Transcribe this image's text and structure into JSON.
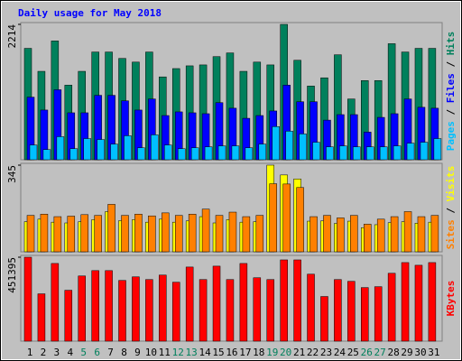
{
  "title": "Daily usage for May 2018",
  "chart_data": [
    {
      "type": "bar",
      "ylim": [
        0,
        2214
      ],
      "yticks": [
        2214
      ],
      "series": [
        {
          "name": "Hits",
          "color": "#00805c",
          "values": [
            1822,
            1446,
            1943,
            1220,
            1446,
            1762,
            1762,
            1657,
            1597,
            1762,
            1355,
            1491,
            1536,
            1551,
            1687,
            1747,
            1446,
            1597,
            1551,
            2214,
            1627,
            1205,
            1340,
            1717,
            994,
            1295,
            1295,
            1898,
            1762,
            1822,
            1822
          ]
        },
        {
          "name": "Files",
          "color": "#0000ff",
          "values": [
            1024,
            813,
            1145,
            768,
            768,
            1054,
            1054,
            964,
            813,
            994,
            723,
            783,
            768,
            753,
            934,
            843,
            678,
            723,
            798,
            1220,
            949,
            949,
            648,
            738,
            738,
            452,
            693,
            753,
            994,
            858,
            843
          ]
        },
        {
          "name": "Pages",
          "color": "#00c0ff",
          "values": [
            241,
            166,
            377,
            181,
            346,
            331,
            256,
            392,
            196,
            407,
            241,
            181,
            196,
            211,
            226,
            226,
            196,
            256,
            542,
            467,
            422,
            286,
            211,
            226,
            211,
            211,
            211,
            226,
            271,
            286,
            346
          ]
        }
      ]
    },
    {
      "type": "bar",
      "ylim": [
        0,
        345
      ],
      "yticks": [
        345
      ],
      "series": [
        {
          "name": "Visits",
          "color": "#ffff00",
          "values": [
            120,
            130,
            118,
            115,
            120,
            128,
            160,
            124,
            128,
            118,
            130,
            118,
            123,
            140,
            115,
            128,
            118,
            120,
            345,
            306,
            290,
            122,
            123,
            113,
            122,
            96,
            108,
            116,
            120,
            114,
            118
          ]
        },
        {
          "name": "Sites",
          "color": "#ff8000",
          "values": [
            145,
            150,
            140,
            142,
            148,
            145,
            189,
            145,
            150,
            143,
            155,
            145,
            150,
            170,
            145,
            158,
            140,
            145,
            271,
            270,
            256,
            140,
            145,
            135,
            145,
            110,
            130,
            140,
            160,
            140,
            145
          ]
        }
      ]
    },
    {
      "type": "bar",
      "ylim": [
        0,
        451395
      ],
      "yticks": [
        451395
      ],
      "categories": [
        "1",
        "2",
        "3",
        "4",
        "5",
        "6",
        "7",
        "8",
        "9",
        "10",
        "11",
        "12",
        "13",
        "14",
        "15",
        "16",
        "17",
        "18",
        "19",
        "20",
        "21",
        "22",
        "23",
        "24",
        "25",
        "26",
        "27",
        "28",
        "29",
        "30",
        "31"
      ],
      "label_colors": [
        "#000000",
        "#000000",
        "#000000",
        "#000000",
        "#00805c",
        "#00805c",
        "#000000",
        "#000000",
        "#000000",
        "#000000",
        "#000000",
        "#00805c",
        "#00805c",
        "#000000",
        "#000000",
        "#000000",
        "#000000",
        "#000000",
        "#00805c",
        "#00805c",
        "#000000",
        "#000000",
        "#000000",
        "#000000",
        "#000000",
        "#00805c",
        "#00805c",
        "#000000",
        "#000000",
        "#000000",
        "#000000"
      ],
      "series": [
        {
          "name": "KBytes",
          "color": "#ff0000",
          "values": [
            451395,
            254510,
            417780,
            273720,
            350560,
            379370,
            379370,
            326540,
            345760,
            331340,
            355350,
            316940,
            398570,
            331340,
            403370,
            331340,
            417780,
            340950,
            331340,
            436990,
            436990,
            360150,
            240110,
            331340,
            321740,
            288120,
            292920,
            364950,
            422580,
            408180,
            422580
          ]
        }
      ]
    }
  ]
}
